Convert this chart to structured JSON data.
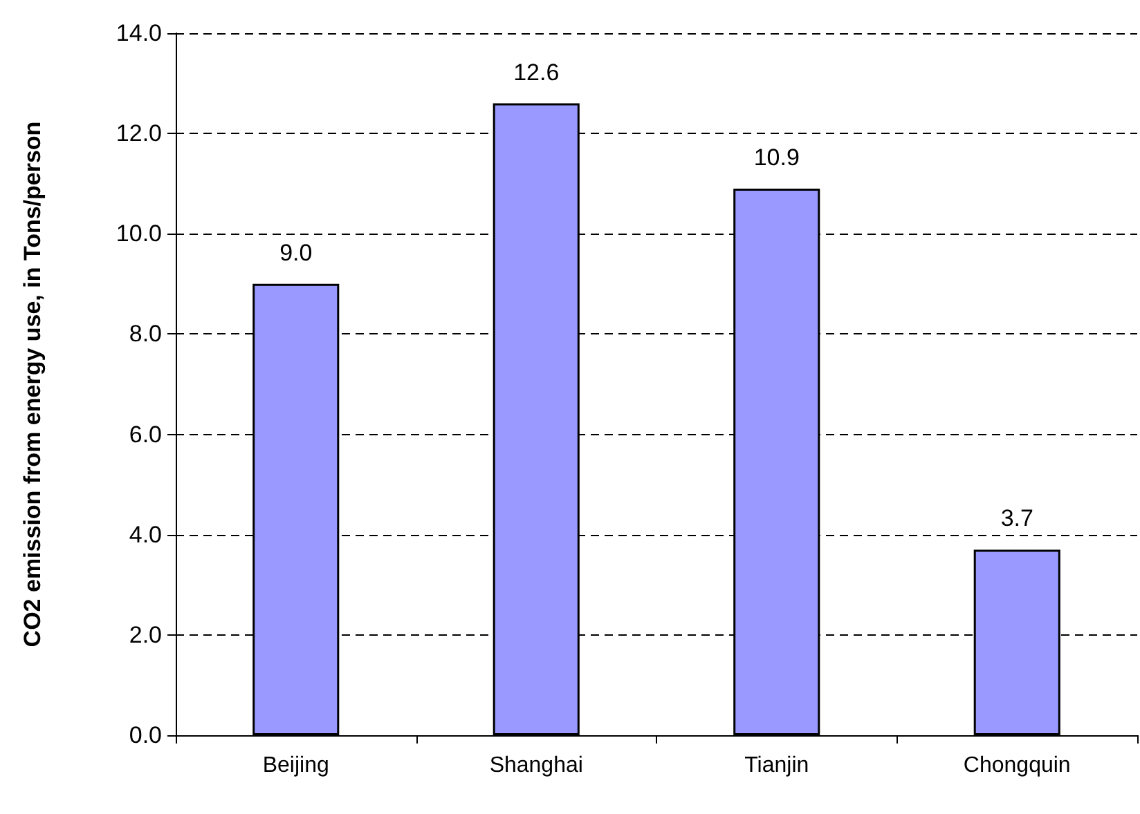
{
  "chart_data": {
    "type": "bar",
    "ylabel": "CO2 emission from energy use, in Tons/person",
    "categories": [
      "Beijing",
      "Shanghai",
      "Tianjin",
      "Chongquin"
    ],
    "values": [
      9.0,
      12.6,
      10.9,
      3.7
    ],
    "color": "#9999ff",
    "value_labels": [
      "9.0",
      "12.6",
      "10.9",
      "3.7"
    ],
    "ylim": [
      0,
      14
    ],
    "yticks": [
      {
        "value": 0,
        "label": "0.0"
      },
      {
        "value": 2,
        "label": "2.0"
      },
      {
        "value": 4,
        "label": "4.0"
      },
      {
        "value": 6,
        "label": "6.0"
      },
      {
        "value": 8,
        "label": "8.0"
      },
      {
        "value": 10,
        "label": "10.0"
      },
      {
        "value": 12,
        "label": "12.0"
      },
      {
        "value": 14,
        "label": "14.0"
      }
    ],
    "grid": "y"
  }
}
